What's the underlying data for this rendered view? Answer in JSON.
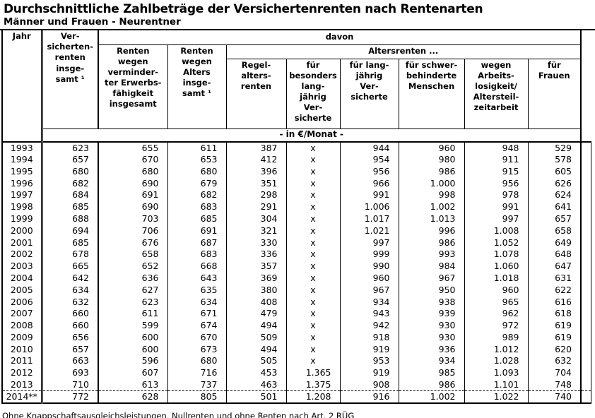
{
  "title": "Durchschnittliche Zahlbeträge der Versichertenrenten nach Rentenarten",
  "subtitle": "Männer und Frauen - Neurentner",
  "table": {
    "headers": {
      "jahr": "Jahr",
      "versichertenrenten": "Ver-\nsicherten-\nrenten\ninsge-\nsamt ¹",
      "davon": "davon",
      "erwerbsminderung": "Renten\nwegen\nverminder-\nter Erwerbs-\nfähigkeit\ninsgesamt",
      "alters_insgesamt": "Renten\nwegen\nAlters\ninsge-\nsamt ¹",
      "altersrenten_group": "Altersrenten ...",
      "regelaltersrenten": "Regel-\nalters-\nrenten",
      "besonders_langjaehrig": "für\nbesonders\nlang-\njährig\nVer-\nsicherte",
      "langjaehrig": "für lang-\njährig\nVer-\nsicherte",
      "schwerbehinderte": "für schwer-\nbehinderte\nMenschen",
      "arbeitslosigkeit": "wegen\nArbeits-\nlosigkeit/\nAltersteil-\nzeitarbeit",
      "frauen": "für\nFrauen",
      "unit": "- in €/Monat -"
    },
    "rows": [
      {
        "jahr": "1993",
        "values": [
          "623",
          "655",
          "611",
          "387",
          "x",
          "944",
          "960",
          "948",
          "529"
        ]
      },
      {
        "jahr": "1994",
        "values": [
          "657",
          "670",
          "653",
          "412",
          "x",
          "954",
          "980",
          "911",
          "578"
        ]
      },
      {
        "jahr": "1995",
        "values": [
          "680",
          "680",
          "680",
          "396",
          "x",
          "956",
          "986",
          "915",
          "605"
        ]
      },
      {
        "jahr": "1996",
        "values": [
          "682",
          "690",
          "679",
          "351",
          "x",
          "966",
          "1.000",
          "956",
          "626"
        ]
      },
      {
        "jahr": "1997",
        "values": [
          "684",
          "691",
          "682",
          "298",
          "x",
          "991",
          "998",
          "978",
          "624"
        ]
      },
      {
        "jahr": "1998",
        "values": [
          "685",
          "690",
          "683",
          "291",
          "x",
          "1.006",
          "1.002",
          "991",
          "641"
        ]
      },
      {
        "jahr": "1999",
        "values": [
          "688",
          "703",
          "685",
          "304",
          "x",
          "1.017",
          "1.013",
          "997",
          "657"
        ]
      },
      {
        "jahr": "2000",
        "values": [
          "694",
          "706",
          "691",
          "321",
          "x",
          "1.021",
          "996",
          "1.008",
          "658"
        ]
      },
      {
        "jahr": "2001",
        "values": [
          "685",
          "676",
          "687",
          "330",
          "x",
          "997",
          "986",
          "1.052",
          "649"
        ]
      },
      {
        "jahr": "2002",
        "values": [
          "678",
          "658",
          "683",
          "336",
          "x",
          "999",
          "993",
          "1.078",
          "648"
        ]
      },
      {
        "jahr": "2003",
        "values": [
          "665",
          "652",
          "668",
          "357",
          "x",
          "990",
          "984",
          "1.060",
          "647"
        ]
      },
      {
        "jahr": "2004",
        "values": [
          "642",
          "636",
          "643",
          "369",
          "x",
          "960",
          "967",
          "1.018",
          "631"
        ]
      },
      {
        "jahr": "2005",
        "values": [
          "634",
          "627",
          "635",
          "380",
          "x",
          "967",
          "950",
          "960",
          "622"
        ]
      },
      {
        "jahr": "2006",
        "values": [
          "632",
          "623",
          "634",
          "408",
          "x",
          "934",
          "938",
          "965",
          "616"
        ]
      },
      {
        "jahr": "2007",
        "values": [
          "660",
          "611",
          "671",
          "479",
          "x",
          "943",
          "939",
          "962",
          "618"
        ]
      },
      {
        "jahr": "2008",
        "values": [
          "660",
          "599",
          "674",
          "494",
          "x",
          "942",
          "930",
          "972",
          "619"
        ]
      },
      {
        "jahr": "2009",
        "values": [
          "656",
          "600",
          "670",
          "509",
          "x",
          "918",
          "930",
          "989",
          "619"
        ]
      },
      {
        "jahr": "2010",
        "values": [
          "657",
          "600",
          "673",
          "494",
          "x",
          "919",
          "936",
          "1.012",
          "620"
        ]
      },
      {
        "jahr": "2011",
        "values": [
          "663",
          "596",
          "680",
          "505",
          "x",
          "953",
          "934",
          "1.028",
          "632"
        ]
      },
      {
        "jahr": "2012",
        "values": [
          "693",
          "607",
          "716",
          "453",
          "1.365",
          "919",
          "985",
          "1.093",
          "704"
        ]
      },
      {
        "jahr": "2013",
        "values": [
          "710",
          "613",
          "737",
          "463",
          "1.375",
          "908",
          "986",
          "1.101",
          "748"
        ]
      },
      {
        "jahr": "2014**",
        "values": [
          "772",
          "628",
          "805",
          "501",
          "1.208",
          "916",
          "1.002",
          "1.022",
          "740"
        ],
        "separator": "dashed"
      }
    ]
  },
  "footnote": "Ohne Knappschaftsausgleichsleistungen, Nullrenten und ohne Renten nach Art. 2 RÜG"
}
